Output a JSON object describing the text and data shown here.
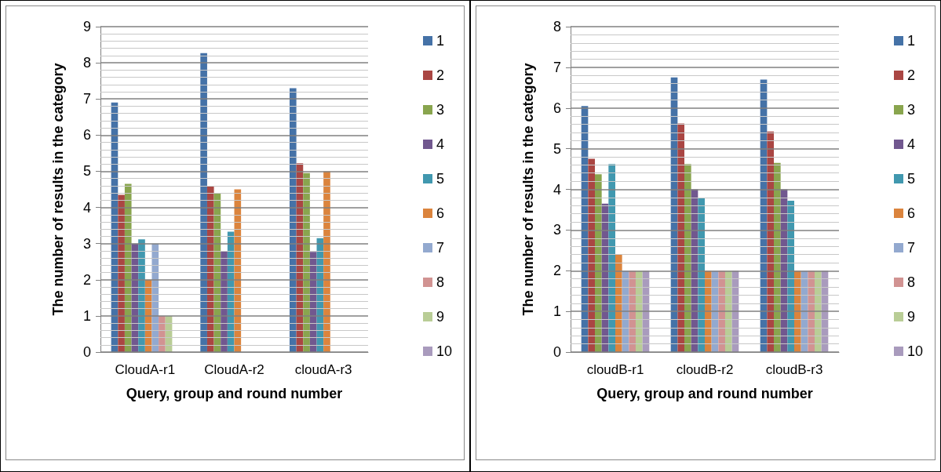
{
  "chart_data": [
    {
      "type": "bar",
      "xlabel": "Query, group and round number",
      "ylabel": "The number of results in the category",
      "categories": [
        "CloudA-r1",
        "CloudA-r2",
        "cloudA-r3"
      ],
      "series": [
        {
          "name": "1",
          "color": "#4572a7",
          "values": [
            6.9,
            8.27,
            7.3
          ]
        },
        {
          "name": "2",
          "color": "#aa4643",
          "values": [
            4.35,
            4.6,
            5.22
          ]
        },
        {
          "name": "3",
          "color": "#89a54e",
          "values": [
            4.65,
            4.4,
            4.95
          ]
        },
        {
          "name": "4",
          "color": "#71588f",
          "values": [
            3.0,
            2.8,
            2.77
          ]
        },
        {
          "name": "5",
          "color": "#4198af",
          "values": [
            3.12,
            3.33,
            3.15
          ]
        },
        {
          "name": "6",
          "color": "#db843d",
          "values": [
            2.0,
            4.5,
            5.0
          ]
        },
        {
          "name": "7",
          "color": "#93a9cf",
          "values": [
            3.0,
            null,
            null
          ]
        },
        {
          "name": "8",
          "color": "#d19392",
          "values": [
            1.0,
            null,
            null
          ]
        },
        {
          "name": "9",
          "color": "#b9cd96",
          "values": [
            1.0,
            null,
            null
          ]
        },
        {
          "name": "10",
          "color": "#a99bbd",
          "values": [
            null,
            null,
            null
          ]
        }
      ],
      "ylim": [
        0,
        9
      ],
      "yticks": [
        0,
        {
          "value": 0.2,
          "label": null
        },
        {
          "value": 0.4,
          "label": null
        },
        {
          "value": 0.6,
          "label": null
        },
        {
          "value": 0.8,
          "label": null
        },
        1,
        {
          "value": 1.2,
          "label": null
        },
        {
          "value": 1.4,
          "label": null
        },
        {
          "value": 1.6,
          "label": null
        },
        {
          "value": 1.8,
          "label": null
        },
        2,
        {
          "value": 2.2,
          "label": null
        },
        {
          "value": 2.4,
          "label": null
        },
        {
          "value": 2.6,
          "label": null
        },
        {
          "value": 2.8,
          "label": null
        },
        3,
        {
          "value": 3.2,
          "label": null
        },
        {
          "value": 3.4,
          "label": null
        },
        {
          "value": 3.6,
          "label": null
        },
        {
          "value": 3.8,
          "label": null
        },
        4,
        {
          "value": 4.2,
          "label": null
        },
        {
          "value": 4.4,
          "label": null
        },
        {
          "value": 4.6,
          "label": null
        },
        {
          "value": 4.8,
          "label": null
        },
        5,
        {
          "value": 5.2,
          "label": null
        },
        {
          "value": 5.4,
          "label": null
        },
        {
          "value": 5.6,
          "label": null
        },
        {
          "value": 5.8,
          "label": null
        },
        6,
        {
          "value": 6.2,
          "label": null
        },
        {
          "value": 6.4,
          "label": null
        },
        {
          "value": 6.6,
          "label": null
        },
        {
          "value": 6.8,
          "label": null
        },
        7,
        {
          "value": 7.2,
          "label": null
        },
        {
          "value": 7.4,
          "label": null
        },
        {
          "value": 7.6,
          "label": null
        },
        {
          "value": 7.8,
          "label": null
        },
        8,
        {
          "value": 8.2,
          "label": null
        },
        {
          "value": 8.4,
          "label": null
        },
        {
          "value": 8.6,
          "label": null
        },
        {
          "value": 8.8,
          "label": null
        },
        9
      ],
      "grid": "y",
      "legend": "right"
    },
    {
      "type": "bar",
      "xlabel": "Query, group and round number",
      "ylabel": "The number of results in the category",
      "categories": [
        "cloudB-r1",
        "cloudB-r2",
        "cloudB-r3"
      ],
      "series": [
        {
          "name": "1",
          "color": "#4572a7",
          "values": [
            6.05,
            6.75,
            6.7
          ]
        },
        {
          "name": "2",
          "color": "#aa4643",
          "values": [
            4.75,
            5.62,
            5.42
          ]
        },
        {
          "name": "3",
          "color": "#89a54e",
          "values": [
            4.37,
            4.62,
            4.65
          ]
        },
        {
          "name": "4",
          "color": "#71588f",
          "values": [
            3.65,
            4.0,
            4.0
          ]
        },
        {
          "name": "5",
          "color": "#4198af",
          "values": [
            4.62,
            3.8,
            3.72
          ]
        },
        {
          "name": "6",
          "color": "#db843d",
          "values": [
            2.4,
            2.0,
            2.0
          ]
        },
        {
          "name": "7",
          "color": "#93a9cf",
          "values": [
            2.0,
            2.0,
            2.0
          ]
        },
        {
          "name": "8",
          "color": "#d19392",
          "values": [
            2.0,
            2.0,
            2.0
          ]
        },
        {
          "name": "9",
          "color": "#b9cd96",
          "values": [
            2.0,
            2.0,
            2.0
          ]
        },
        {
          "name": "10",
          "color": "#a99bbd",
          "values": [
            2.0,
            2.0,
            2.0
          ]
        }
      ],
      "ylim": [
        0,
        8
      ],
      "yticks": [
        0,
        {
          "value": 0.2,
          "label": null
        },
        {
          "value": 0.4,
          "label": null
        },
        {
          "value": 0.6,
          "label": null
        },
        {
          "value": 0.8,
          "label": null
        },
        1,
        {
          "value": 1.2,
          "label": null
        },
        {
          "value": 1.4,
          "label": null
        },
        {
          "value": 1.6,
          "label": null
        },
        {
          "value": 1.8,
          "label": null
        },
        2,
        {
          "value": 2.2,
          "label": null
        },
        {
          "value": 2.4,
          "label": null
        },
        {
          "value": 2.6,
          "label": null
        },
        {
          "value": 2.8,
          "label": null
        },
        3,
        {
          "value": 3.2,
          "label": null
        },
        {
          "value": 3.4,
          "label": null
        },
        {
          "value": 3.6,
          "label": null
        },
        {
          "value": 3.8,
          "label": null
        },
        4,
        {
          "value": 4.2,
          "label": null
        },
        {
          "value": 4.4,
          "label": null
        },
        {
          "value": 4.6,
          "label": null
        },
        {
          "value": 4.8,
          "label": null
        },
        5,
        {
          "value": 5.2,
          "label": null
        },
        {
          "value": 5.4,
          "label": null
        },
        {
          "value": 5.6,
          "label": null
        },
        {
          "value": 5.8,
          "label": null
        },
        6,
        {
          "value": 6.2,
          "label": null
        },
        {
          "value": 6.4,
          "label": null
        },
        {
          "value": 6.6,
          "label": null
        },
        {
          "value": 6.8,
          "label": null
        },
        7,
        {
          "value": 7.2,
          "label": null
        },
        {
          "value": 7.4,
          "label": null
        },
        {
          "value": 7.6,
          "label": null
        },
        {
          "value": 7.8,
          "label": null
        },
        8
      ],
      "grid": "y",
      "legend": "right"
    }
  ]
}
